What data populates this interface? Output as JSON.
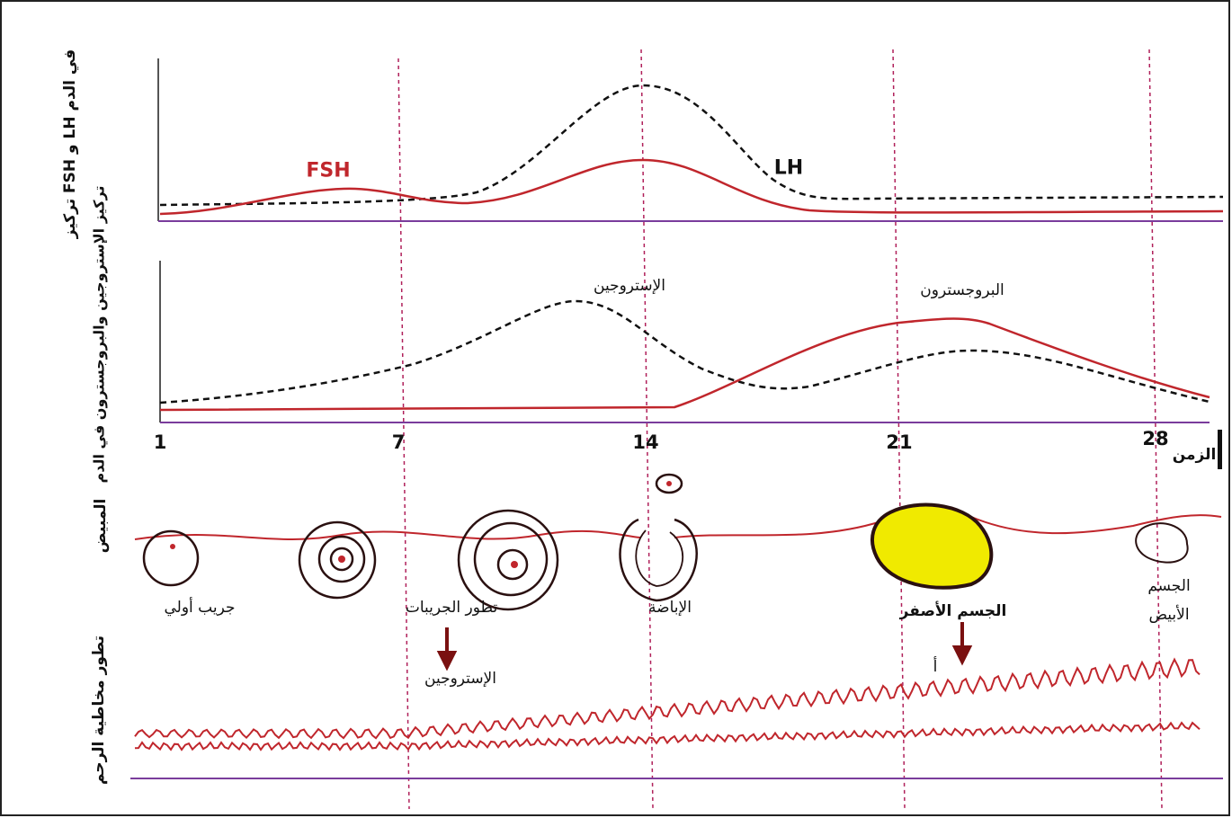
{
  "axes": {
    "top_label": "تركيز FSH و LH في الدم",
    "middle_label": "تركيز الإستروجين والبروجسترون في الدم",
    "days": [
      "1",
      "7",
      "14",
      "21",
      "28"
    ],
    "time_label": "الزمن"
  },
  "curves": {
    "fsh": "FSH",
    "lh": "LH",
    "estrogen": "الإستروجين",
    "progesterone": "البروجسترون"
  },
  "ovary": {
    "label": "المبيض",
    "stages": [
      "جريب أولي",
      "تطور الجريبات",
      "الإباضة",
      "الجسم الأصفر",
      "الجسم الأبيض"
    ]
  },
  "arrows": {
    "estrogen": "الإستروجين",
    "progesterone": "أ"
  },
  "uterus": {
    "label": "تطور مخاطية الرحم"
  }
}
